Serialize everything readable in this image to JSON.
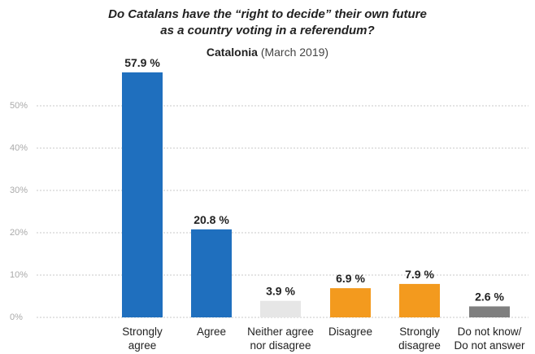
{
  "chart_data": {
    "type": "bar",
    "title_line1": "Do Catalans have the “right to decide” their own future",
    "title_line2": "as a country voting in a referendum?",
    "subtitle_bold": "Catalonia",
    "subtitle_rest": "(March 2019)",
    "ylim": [
      0,
      55
    ],
    "y_ticks": [
      {
        "value": 0,
        "label": "0%"
      },
      {
        "value": 10,
        "label": "10%"
      },
      {
        "value": 20,
        "label": "20%"
      },
      {
        "value": 30,
        "label": "30%"
      },
      {
        "value": 40,
        "label": "40%"
      },
      {
        "value": 50,
        "label": "50%"
      }
    ],
    "grid": true,
    "categories": [
      {
        "lines": [
          "Strongly",
          "agree"
        ],
        "value": 57.9,
        "label": "57.9 %",
        "color": "#1f6fbe"
      },
      {
        "lines": [
          "Agree"
        ],
        "value": 20.8,
        "label": "20.8 %",
        "color": "#1f6fbe"
      },
      {
        "lines": [
          "Neither agree",
          "nor disagree"
        ],
        "value": 3.9,
        "label": "3.9 %",
        "color": "#e6e6e6"
      },
      {
        "lines": [
          "Disagree"
        ],
        "value": 6.9,
        "label": "6.9 %",
        "color": "#f39a1e"
      },
      {
        "lines": [
          "Strongly",
          "disagree"
        ],
        "value": 7.9,
        "label": "7.9 %",
        "color": "#f39a1e"
      },
      {
        "lines": [
          "Do not know/",
          "Do not answer"
        ],
        "value": 2.6,
        "label": "2.6 %",
        "color": "#7f7f7f"
      }
    ]
  }
}
